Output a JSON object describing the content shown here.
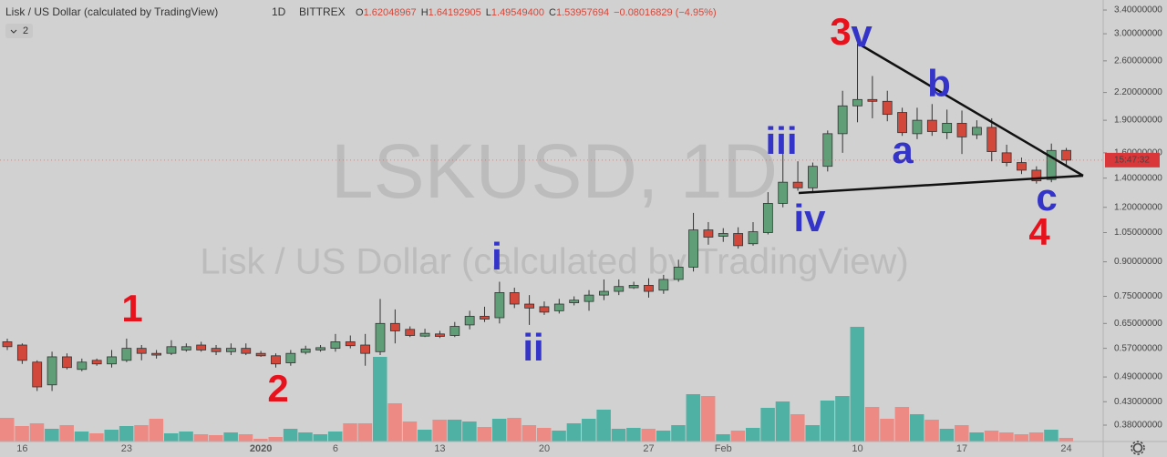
{
  "header": {
    "symbol": "Lisk / US Dollar (calculated by TradingView)",
    "interval": "1D",
    "exchange": "BITTREX",
    "ohlc": [
      "O",
      "1.62048967",
      "H",
      "1.64192905",
      "L",
      "1.49549400",
      "C",
      "1.53957694",
      "−0.08016829 (−4.95%)"
    ],
    "indicator_count": "2",
    "countdown": "15:47:32"
  },
  "watermark": {
    "ticker": "LSKUSD, 1D",
    "description": "Lisk / US Dollar (calculated by TradingView)"
  },
  "chart_data": {
    "type": "candlestick",
    "log_scale": true,
    "grid": false,
    "up_color": "#5f9e77",
    "down_color": "#d2483b",
    "volume_up_color": "#4fb0a4",
    "volume_down_color": "#ee8a84",
    "label_color": "#d9373a",
    "categories": [
      null,
      "16",
      null,
      null,
      null,
      null,
      null,
      null,
      "23",
      null,
      null,
      null,
      null,
      null,
      null,
      null,
      null,
      "2020",
      null,
      null,
      null,
      null,
      "6",
      null,
      null,
      null,
      null,
      null,
      null,
      "13",
      null,
      null,
      null,
      null,
      null,
      null,
      "20",
      null,
      null,
      null,
      null,
      null,
      null,
      "27",
      null,
      null,
      null,
      null,
      "Feb",
      null,
      null,
      null,
      null,
      null,
      null,
      null,
      null,
      "10",
      null,
      null,
      null,
      null,
      null,
      null,
      "17",
      null,
      null,
      null,
      null,
      null,
      null,
      "24"
    ],
    "open": [
      0.59,
      0.58,
      0.53,
      0.47,
      0.545,
      0.51,
      0.535,
      0.525,
      0.535,
      0.57,
      0.555,
      0.555,
      0.565,
      0.58,
      0.57,
      0.56,
      0.57,
      0.555,
      0.548,
      0.528,
      0.558,
      0.565,
      0.57,
      0.59,
      0.58,
      0.56,
      0.65,
      0.63,
      0.608,
      0.615,
      0.61,
      0.645,
      0.675,
      0.67,
      0.765,
      0.72,
      0.71,
      0.695,
      0.725,
      0.73,
      0.755,
      0.77,
      0.785,
      0.795,
      0.775,
      0.82,
      0.875,
      1.065,
      1.03,
      1.045,
      0.99,
      1.05,
      1.225,
      1.37,
      1.33,
      1.49,
      1.77,
      2.05,
      2.12,
      2.1,
      1.98,
      1.77,
      1.9,
      1.78,
      1.87,
      1.76,
      1.83,
      1.6,
      1.52,
      1.46,
      1.39,
      1.62048967
    ],
    "high": [
      0.6,
      0.585,
      0.535,
      0.56,
      0.555,
      0.54,
      0.54,
      0.565,
      0.6,
      0.58,
      0.565,
      0.595,
      0.585,
      0.59,
      0.58,
      0.585,
      0.585,
      0.562,
      0.555,
      0.565,
      0.578,
      0.58,
      0.615,
      0.61,
      0.615,
      0.74,
      0.7,
      0.64,
      0.632,
      0.625,
      0.655,
      0.695,
      0.71,
      0.81,
      0.785,
      0.755,
      0.73,
      0.74,
      0.75,
      0.775,
      0.82,
      0.82,
      0.81,
      0.825,
      0.84,
      0.91,
      1.165,
      1.11,
      1.075,
      1.08,
      1.11,
      1.3,
      1.68,
      1.53,
      1.52,
      1.8,
      2.22,
      2.85,
      2.4,
      2.22,
      2.03,
      2.03,
      2.07,
      2.01,
      2.0,
      1.9,
      1.92,
      1.67,
      1.56,
      1.49,
      1.68,
      1.64192905
    ],
    "low": [
      0.565,
      0.525,
      0.455,
      0.455,
      0.51,
      0.505,
      0.52,
      0.515,
      0.53,
      0.535,
      0.54,
      0.55,
      0.56,
      0.56,
      0.55,
      0.55,
      0.55,
      0.545,
      0.515,
      0.52,
      0.552,
      0.56,
      0.56,
      0.57,
      0.52,
      0.55,
      0.585,
      0.605,
      0.605,
      0.602,
      0.605,
      0.63,
      0.655,
      0.65,
      0.705,
      0.645,
      0.68,
      0.685,
      0.715,
      0.695,
      0.735,
      0.755,
      0.78,
      0.745,
      0.76,
      0.81,
      0.855,
      0.985,
      1.0,
      0.965,
      0.98,
      1.04,
      1.2,
      1.31,
      1.305,
      1.45,
      1.6,
      1.88,
      1.92,
      1.89,
      1.75,
      1.72,
      1.75,
      1.72,
      1.59,
      1.72,
      1.53,
      1.49,
      1.43,
      1.36,
      1.37,
      1.495494
    ],
    "close": [
      0.575,
      0.535,
      0.465,
      0.545,
      0.515,
      0.53,
      0.525,
      0.545,
      0.57,
      0.555,
      0.55,
      0.575,
      0.575,
      0.565,
      0.56,
      0.57,
      0.555,
      0.548,
      0.525,
      0.555,
      0.568,
      0.572,
      0.59,
      0.578,
      0.555,
      0.65,
      0.625,
      0.61,
      0.617,
      0.607,
      0.64,
      0.675,
      0.665,
      0.765,
      0.72,
      0.705,
      0.69,
      0.72,
      0.735,
      0.755,
      0.77,
      0.79,
      0.795,
      0.77,
      0.82,
      0.875,
      1.065,
      1.025,
      1.045,
      0.98,
      1.055,
      1.225,
      1.37,
      1.33,
      1.49,
      1.77,
      2.05,
      2.12,
      2.1,
      1.96,
      1.78,
      1.9,
      1.79,
      1.87,
      1.74,
      1.83,
      1.61,
      1.52,
      1.46,
      1.38,
      1.62,
      1.53957694
    ],
    "volume": [
      26,
      17,
      20,
      14,
      18,
      11,
      9,
      13,
      17,
      18,
      25,
      9,
      11,
      8,
      7,
      10,
      8,
      3,
      5,
      14,
      10,
      8,
      11,
      20,
      20,
      93,
      42,
      22,
      13,
      24,
      24,
      22,
      16,
      25,
      26,
      18,
      15,
      12,
      20,
      25,
      35,
      14,
      15,
      14,
      12,
      18,
      52,
      50,
      8,
      12,
      15,
      37,
      44,
      30,
      18,
      45,
      50,
      126,
      38,
      25,
      38,
      30,
      24,
      14,
      18,
      10,
      12,
      10,
      8,
      10,
      13,
      4
    ],
    "ylim": [
      0.3485,
      3.585
    ],
    "yticks": [
      {
        "value": 3.4,
        "label": "3.40000000"
      },
      {
        "value": 3.0,
        "label": "3.00000000"
      },
      {
        "value": 2.6,
        "label": "2.60000000"
      },
      {
        "value": 2.2,
        "label": "2.20000000"
      },
      {
        "value": 1.9,
        "label": "1.90000000"
      },
      {
        "value": 1.6,
        "label": "1.60000000"
      },
      {
        "value": 1.4,
        "label": "1.40000000"
      },
      {
        "value": 1.2,
        "label": "1.20000000"
      },
      {
        "value": 1.05,
        "label": "1.05000000"
      },
      {
        "value": 0.9,
        "label": "0.90000000"
      },
      {
        "value": 0.75,
        "label": "0.75000000"
      },
      {
        "value": 0.65,
        "label": "0.65000000"
      },
      {
        "value": 0.57,
        "label": "0.57000000"
      },
      {
        "value": 0.49,
        "label": "0.49000000"
      },
      {
        "value": 0.43,
        "label": "0.43000000"
      },
      {
        "value": 0.38,
        "label": "0.38000000"
      }
    ],
    "annotations": [
      {
        "text": "1",
        "color": "#e8121c"
      },
      {
        "text": "2",
        "color": "#e8121c"
      },
      {
        "text": "3",
        "color": "#e8121c"
      },
      {
        "text": "v",
        "color": "#3434c8"
      },
      {
        "text": "4",
        "color": "#e8121c"
      },
      {
        "text": "i",
        "color": "#3434c8"
      },
      {
        "text": "ii",
        "color": "#3434c8"
      },
      {
        "text": "iii",
        "color": "#3434c8"
      },
      {
        "text": "iv",
        "color": "#3434c8"
      },
      {
        "text": "a",
        "color": "#3434c8"
      },
      {
        "text": "b",
        "color": "#3434c8"
      },
      {
        "text": "c",
        "color": "#3434c8"
      }
    ]
  }
}
